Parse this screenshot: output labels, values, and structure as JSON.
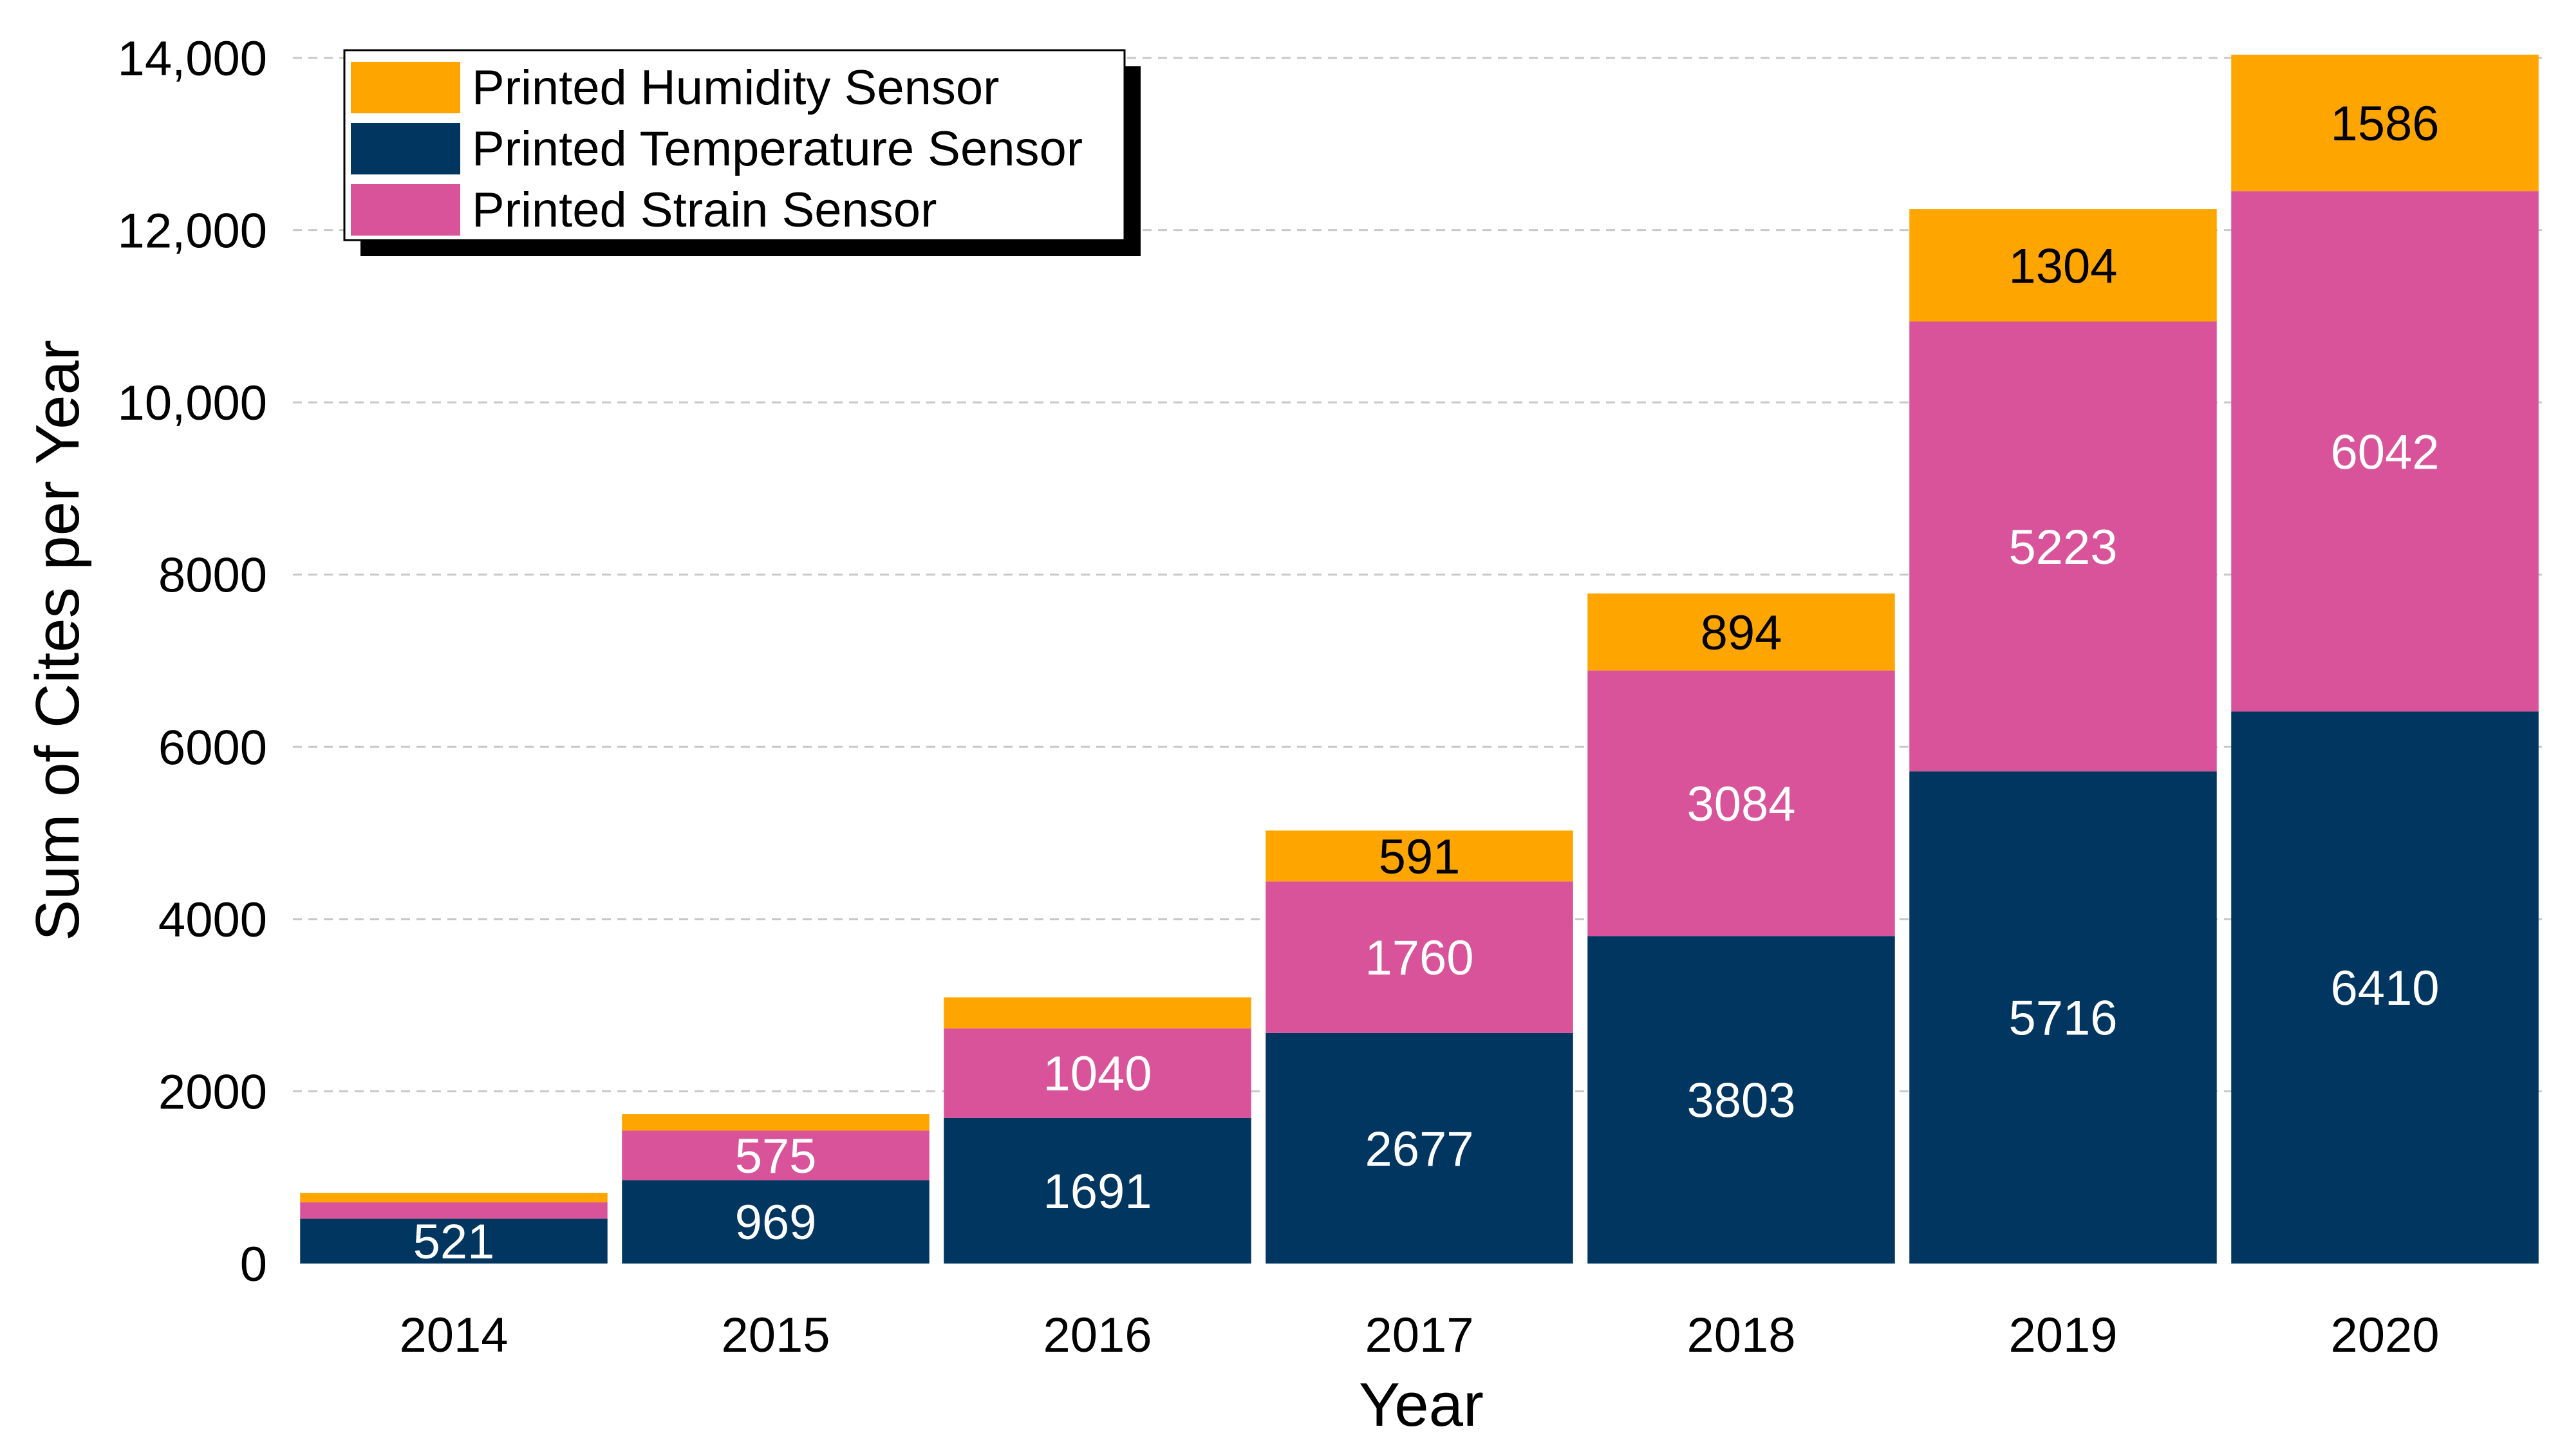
{
  "chart_data": {
    "type": "bar",
    "stacked": true,
    "title": "",
    "xlabel": "Year",
    "ylabel": "Sum of Cites per Year",
    "ylim": [
      0,
      14000
    ],
    "yticks": [
      0,
      2000,
      4000,
      6000,
      8000,
      10000,
      12000,
      14000
    ],
    "ytick_labels": [
      "0",
      "2000",
      "4000",
      "6000",
      "8000",
      "10,000",
      "12,000",
      "14,000"
    ],
    "categories": [
      "2014",
      "2015",
      "2016",
      "2017",
      "2018",
      "2019",
      "2020"
    ],
    "grid": true,
    "legend_position": "top-left",
    "series": [
      {
        "name": "Printed Temperature Sensor",
        "color": "#003660",
        "label_color": "#ffffff",
        "values": [
          521,
          969,
          1691,
          2677,
          3803,
          5716,
          6410
        ],
        "labels": [
          "521",
          "969",
          "1691",
          "2677",
          "3803",
          "5716",
          "6410"
        ]
      },
      {
        "name": "Printed Strain Sensor",
        "color": "#D9539B",
        "label_color": "#ffffff",
        "values": [
          190,
          575,
          1040,
          1760,
          3084,
          5223,
          6042
        ],
        "labels": [
          "",
          "575",
          "1040",
          "1760",
          "3084",
          "5223",
          "6042"
        ]
      },
      {
        "name": "Printed Humidity Sensor",
        "color": "#FFA500",
        "label_color": "#000000",
        "values": [
          110,
          190,
          360,
          591,
          894,
          1304,
          1586
        ],
        "labels": [
          "",
          "",
          "",
          "591",
          "894",
          "1304",
          "1586"
        ]
      }
    ],
    "legend_order": [
      "Printed Humidity Sensor",
      "Printed Temperature Sensor",
      "Printed Strain Sensor"
    ]
  }
}
